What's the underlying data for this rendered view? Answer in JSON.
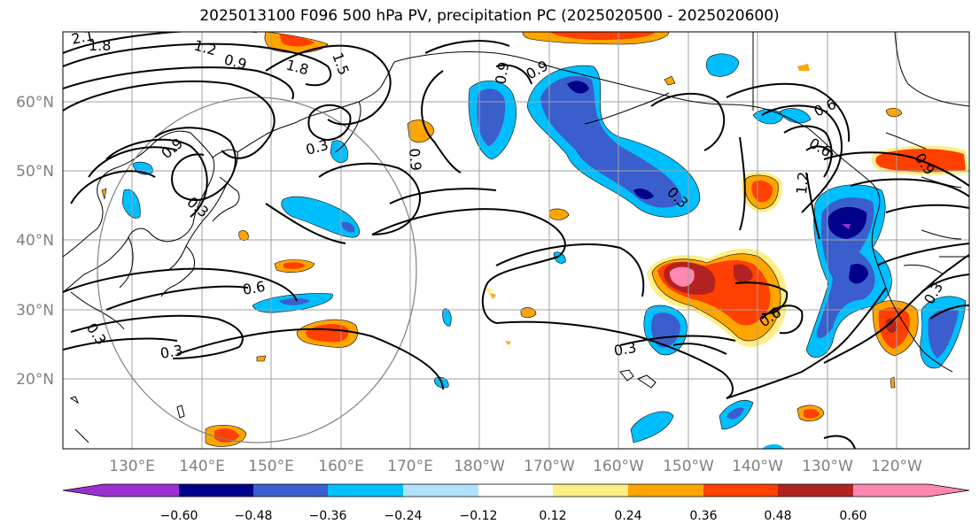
{
  "title": "2025013100 F096 500 hPa PV, precipitation PC (2025020500 - 2025020600)",
  "lat_labels": [
    "60°N",
    "50°N",
    "40°N",
    "30°N",
    "20°N"
  ],
  "lon_labels": [
    "130°E",
    "140°E",
    "150°E",
    "160°E",
    "170°E",
    "180°W",
    "170°W",
    "160°W",
    "150°W",
    "140°W",
    "130°W",
    "120°W"
  ],
  "contour_labels": [
    "2.1",
    "1.8",
    "1.2",
    "0.9",
    "1.8",
    "1.5",
    "0.9",
    "0.9",
    "0.3",
    "0.9",
    "0.3",
    "0.6",
    "0.3",
    "0.3",
    "0.9",
    "0.3",
    "0.6",
    "0.6",
    "0.3",
    "0.6",
    "1.2",
    "0.9",
    "0.3"
  ],
  "colorbar": {
    "ticks": [
      "−0.60",
      "−0.48",
      "−0.36",
      "−0.24",
      "−0.12",
      "0.12",
      "0.24",
      "0.36",
      "0.48",
      "0.60"
    ],
    "colors": [
      "#9b30d0",
      "#00008b",
      "#3a5fcd",
      "#00bfff",
      "#b0e2ff",
      "#ffffff",
      "#ffee88",
      "#ffa500",
      "#ff4000",
      "#b22222",
      "#ff88b0",
      "#ff88b0"
    ]
  },
  "colors": {
    "grid": "#a0a0a0",
    "coast": "#000000",
    "contour": "#000000",
    "circle": "#808080"
  }
}
